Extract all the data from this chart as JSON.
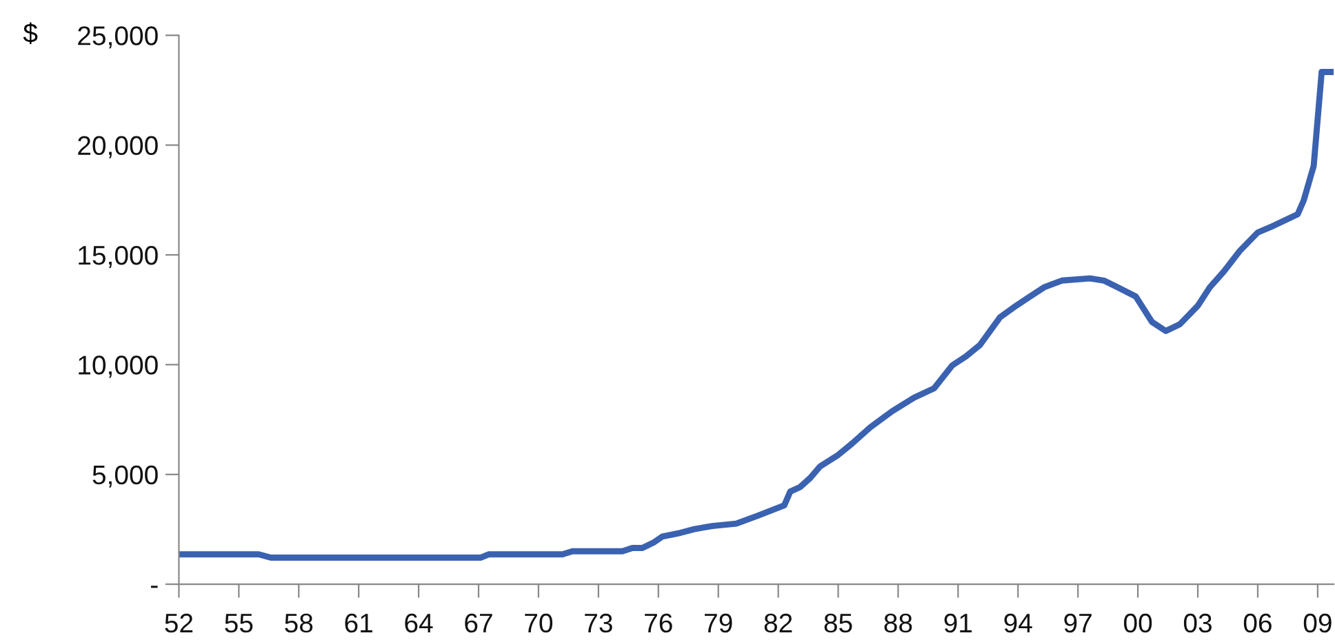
{
  "chart_data": {
    "type": "line",
    "ylabel": "$",
    "x": [
      1952,
      1956.0,
      1956.6,
      1967.1,
      1967.5,
      1971.2,
      1971.7,
      1974.2,
      1974.7,
      1975.2,
      1975.8,
      1976.2,
      1977.1,
      1977.8,
      1978.7,
      1979.9,
      1981.0,
      1982.3,
      1982.6,
      1983.1,
      1983.6,
      1984.1,
      1985.0,
      1985.7,
      1986.6,
      1987.7,
      1988.8,
      1989.8,
      1990.7,
      1991.4,
      1992.1,
      1992.6,
      1993.1,
      1993.9,
      1994.6,
      1995.3,
      1996.2,
      1997.6,
      1998.3,
      1999.0,
      1999.9,
      2000.7,
      2001.4,
      2002.1,
      2003.0,
      2003.6,
      2004.3,
      2005.1,
      2006.0,
      2006.8,
      2008.0,
      2008.3,
      2008.8,
      2009.2,
      2009.7
    ],
    "series": [
      {
        "color": "#3a62b0",
        "values": [
          1360,
          1360,
          1210,
          1210,
          1360,
          1360,
          1500,
          1500,
          1650,
          1650,
          1920,
          2170,
          2340,
          2510,
          2650,
          2760,
          3130,
          3590,
          4220,
          4430,
          4840,
          5370,
          5890,
          6410,
          7140,
          7880,
          8500,
          8920,
          9960,
          10380,
          10900,
          11530,
          12160,
          12680,
          13100,
          13520,
          13830,
          13930,
          13830,
          13520,
          13100,
          11950,
          11530,
          11840,
          12680,
          13520,
          14240,
          15180,
          16020,
          16330,
          16850,
          17480,
          19050,
          23330,
          23330
        ]
      }
    ],
    "xlim": [
      1952,
      2009.8
    ],
    "xticks": [
      {
        "value": 1952,
        "label": "52"
      },
      {
        "value": 1955,
        "label": "55"
      },
      {
        "value": 1958,
        "label": "58"
      },
      {
        "value": 1961,
        "label": "61"
      },
      {
        "value": 1964,
        "label": "64"
      },
      {
        "value": 1967,
        "label": "67"
      },
      {
        "value": 1970,
        "label": "70"
      },
      {
        "value": 1973,
        "label": "73"
      },
      {
        "value": 1976,
        "label": "76"
      },
      {
        "value": 1979,
        "label": "79"
      },
      {
        "value": 1982,
        "label": "82"
      },
      {
        "value": 1985,
        "label": "85"
      },
      {
        "value": 1988,
        "label": "88"
      },
      {
        "value": 1991,
        "label": "91"
      },
      {
        "value": 1994,
        "label": "94"
      },
      {
        "value": 1997,
        "label": "97"
      },
      {
        "value": 2000,
        "label": "00"
      },
      {
        "value": 2003,
        "label": "03"
      },
      {
        "value": 2006,
        "label": "06"
      },
      {
        "value": 2009,
        "label": "09"
      }
    ],
    "ylim": [
      0,
      25000
    ],
    "yticks": [
      {
        "value": 0,
        "label": "-"
      },
      {
        "value": 5000,
        "label": "5,000"
      },
      {
        "value": 10000,
        "label": "10,000"
      },
      {
        "value": 15000,
        "label": "15,000"
      },
      {
        "value": 20000,
        "label": "20,000"
      },
      {
        "value": 25000,
        "label": "25,000"
      }
    ],
    "grid": false,
    "legend": false,
    "marker": "none",
    "line_style": "solid"
  }
}
